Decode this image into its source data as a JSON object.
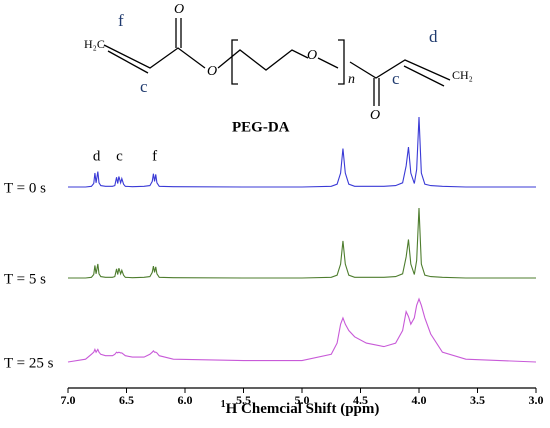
{
  "structure": {
    "left_group": "H₂C",
    "label_f": "f",
    "label_c_left": "c",
    "carbonyl_o_left": "O",
    "ester_o": "O",
    "ether_o": "O",
    "repeat": "n",
    "carbonyl_o_right": "O",
    "label_c_right": "c",
    "label_d": "d",
    "right_group": "CH₂",
    "name": "PEG-DA"
  },
  "chart_data": {
    "type": "line",
    "xlabel_superscript": "1",
    "xlabel": "H Chemcial Shift (ppm)",
    "xlim": [
      7.0,
      3.0
    ],
    "xticks": [
      {
        "value": 7.0,
        "label": "7.0"
      },
      {
        "value": 6.5,
        "label": "6.5"
      },
      {
        "value": 6.0,
        "label": "6.0"
      },
      {
        "value": 5.5,
        "label": "5.5"
      },
      {
        "value": 5.0,
        "label": "5.0"
      },
      {
        "value": 4.5,
        "label": "4.5"
      },
      {
        "value": 4.0,
        "label": "4.0"
      },
      {
        "value": 3.5,
        "label": "3.5"
      },
      {
        "value": 3.0,
        "label": "3.0"
      }
    ],
    "annotations": [
      {
        "text": "d",
        "x": 6.755
      },
      {
        "text": "c",
        "x": 6.56
      },
      {
        "text": "f",
        "x": 6.26
      }
    ],
    "x": [
      7.0,
      6.85,
      6.8,
      6.78,
      6.77,
      6.76,
      6.745,
      6.735,
      6.72,
      6.68,
      6.62,
      6.6,
      6.585,
      6.575,
      6.565,
      6.55,
      6.54,
      6.525,
      6.51,
      6.45,
      6.35,
      6.3,
      6.28,
      6.27,
      6.26,
      6.25,
      6.24,
      6.22,
      6.1,
      5.5,
      5.0,
      4.75,
      4.7,
      4.67,
      4.65,
      4.63,
      4.6,
      4.55,
      4.45,
      4.3,
      4.2,
      4.14,
      4.11,
      4.09,
      4.07,
      4.04,
      4.02,
      4.0,
      3.98,
      3.95,
      3.9,
      3.8,
      3.6,
      3.0
    ],
    "series": [
      {
        "name": "T = 0 s",
        "color": "#3a3ad6",
        "values": [
          0,
          0,
          0.01,
          0.05,
          0.2,
          0.06,
          0.22,
          0.06,
          0.02,
          0.01,
          0.01,
          0.02,
          0.14,
          0.05,
          0.15,
          0.06,
          0.12,
          0.04,
          0.01,
          0.005,
          0.01,
          0.02,
          0.08,
          0.19,
          0.08,
          0.18,
          0.06,
          0.01,
          0.005,
          0,
          0,
          0.01,
          0.04,
          0.2,
          0.55,
          0.2,
          0.04,
          0.01,
          0.01,
          0.01,
          0.02,
          0.06,
          0.3,
          0.57,
          0.2,
          0.05,
          0.25,
          1.0,
          0.2,
          0.04,
          0.02,
          0.01,
          0,
          0
        ]
      },
      {
        "name": "T = 5 s",
        "color": "#4e7d2e",
        "values": [
          0,
          0,
          0.01,
          0.05,
          0.18,
          0.06,
          0.2,
          0.06,
          0.02,
          0.01,
          0.01,
          0.02,
          0.13,
          0.05,
          0.14,
          0.06,
          0.11,
          0.04,
          0.01,
          0.005,
          0.01,
          0.02,
          0.08,
          0.17,
          0.08,
          0.16,
          0.06,
          0.01,
          0.005,
          0,
          0,
          0.01,
          0.04,
          0.2,
          0.53,
          0.2,
          0.04,
          0.01,
          0.01,
          0.01,
          0.02,
          0.06,
          0.3,
          0.55,
          0.2,
          0.05,
          0.25,
          1.0,
          0.2,
          0.04,
          0.02,
          0.01,
          0,
          0
        ]
      },
      {
        "name": "T = 25 s",
        "color": "#c85ad8",
        "values": [
          0,
          0.04,
          0.11,
          0.14,
          0.18,
          0.14,
          0.18,
          0.14,
          0.11,
          0.09,
          0.09,
          0.11,
          0.14,
          0.13,
          0.14,
          0.13,
          0.13,
          0.11,
          0.09,
          0.07,
          0.07,
          0.11,
          0.14,
          0.16,
          0.14,
          0.14,
          0.13,
          0.09,
          0.04,
          0.02,
          0.02,
          0.11,
          0.27,
          0.54,
          0.63,
          0.54,
          0.45,
          0.36,
          0.27,
          0.22,
          0.27,
          0.45,
          0.72,
          0.65,
          0.54,
          0.63,
          0.81,
          0.9,
          0.81,
          0.63,
          0.4,
          0.14,
          0.04,
          0
        ]
      }
    ]
  }
}
